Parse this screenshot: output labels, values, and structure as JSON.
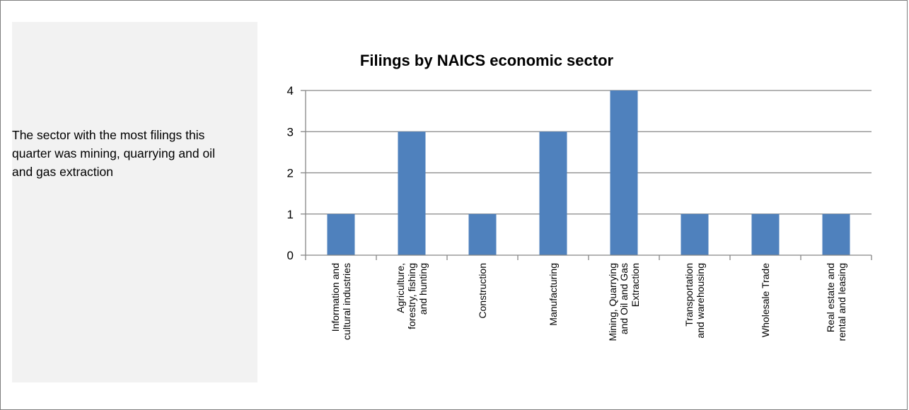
{
  "panel": {
    "text": "The sector with the most filings this quarter was mining, quarrying and oil and gas extraction"
  },
  "colors": {
    "bar": "#4f81bd",
    "grid": "#868686",
    "axis": "#868686",
    "panel_bg": "#f2f2f2"
  },
  "chart_data": {
    "type": "bar",
    "title": "Filings by NAICS economic sector",
    "xlabel": "",
    "ylabel": "",
    "ylim": [
      0,
      4
    ],
    "yticks": [
      0,
      1,
      2,
      3,
      4
    ],
    "grid": true,
    "legend": "none",
    "categories": [
      [
        "Information and",
        "cultural industries"
      ],
      [
        "Agriculture,",
        "forestry, fishing",
        "and hunting"
      ],
      [
        "Construction"
      ],
      [
        "Manufacturing"
      ],
      [
        "Mining, Quarrying",
        "and Oil and Gas",
        "Extraction"
      ],
      [
        "Transportation",
        "and warehousing"
      ],
      [
        "Wholesale Trade"
      ],
      [
        "Real estate and",
        "rental and leasing"
      ]
    ],
    "values": [
      1,
      3,
      1,
      3,
      4,
      1,
      1,
      1
    ]
  }
}
